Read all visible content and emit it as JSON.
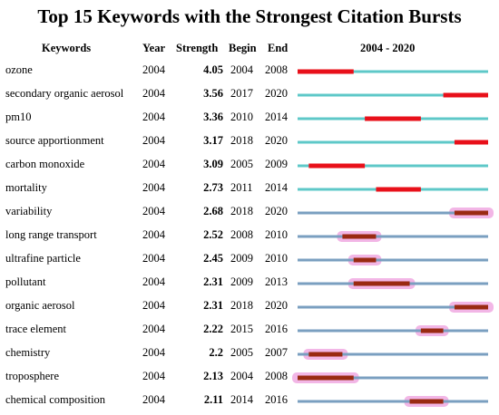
{
  "title": "Top 15 Keywords with the Strongest Citation Bursts",
  "headers": {
    "keywords": "Keywords",
    "year": "Year",
    "strength": "Strength",
    "begin": "Begin",
    "end": "End",
    "timeline": "2004 - 2020"
  },
  "chart_data": {
    "type": "table",
    "timeline_start": 2004,
    "timeline_end": 2020,
    "colors": {
      "baseline_cyan": "#5ec8c8",
      "baseline_blue": "#7a9fc0",
      "burst_red": "#e8101a",
      "burst_dark": "#9a2a12",
      "highlight_pink": "#f2b6e6"
    },
    "rows": [
      {
        "keyword": "ozone",
        "year": "2004",
        "strength": "4.05",
        "begin": "2004",
        "end": "2008",
        "style": "red"
      },
      {
        "keyword": "secondary organic aerosol",
        "year": "2004",
        "strength": "3.56",
        "begin": "2017",
        "end": "2020",
        "style": "red"
      },
      {
        "keyword": "pm10",
        "year": "2004",
        "strength": "3.36",
        "begin": "2010",
        "end": "2014",
        "style": "red"
      },
      {
        "keyword": "source apportionment",
        "year": "2004",
        "strength": "3.17",
        "begin": "2018",
        "end": "2020",
        "style": "red"
      },
      {
        "keyword": "carbon monoxide",
        "year": "2004",
        "strength": "3.09",
        "begin": "2005",
        "end": "2009",
        "style": "red"
      },
      {
        "keyword": "mortality",
        "year": "2004",
        "strength": "2.73",
        "begin": "2011",
        "end": "2014",
        "style": "red"
      },
      {
        "keyword": "variability",
        "year": "2004",
        "strength": "2.68",
        "begin": "2018",
        "end": "2020",
        "style": "dark"
      },
      {
        "keyword": "long range transport",
        "year": "2004",
        "strength": "2.52",
        "begin": "2008",
        "end": "2010",
        "style": "dark"
      },
      {
        "keyword": "ultrafine particle",
        "year": "2004",
        "strength": "2.45",
        "begin": "2009",
        "end": "2010",
        "style": "dark"
      },
      {
        "keyword": "pollutant",
        "year": "2004",
        "strength": "2.31",
        "begin": "2009",
        "end": "2013",
        "style": "dark"
      },
      {
        "keyword": "organic aerosol",
        "year": "2004",
        "strength": "2.31",
        "begin": "2018",
        "end": "2020",
        "style": "dark"
      },
      {
        "keyword": "trace element",
        "year": "2004",
        "strength": "2.22",
        "begin": "2015",
        "end": "2016",
        "style": "dark"
      },
      {
        "keyword": "chemistry",
        "year": "2004",
        "strength": "2.2",
        "begin": "2005",
        "end": "2007",
        "style": "dark"
      },
      {
        "keyword": "troposphere",
        "year": "2004",
        "strength": "2.13",
        "begin": "2004",
        "end": "2008",
        "style": "dark"
      },
      {
        "keyword": "chemical composition",
        "year": "2004",
        "strength": "2.11",
        "begin": "2014",
        "end": "2016",
        "style": "dark"
      }
    ]
  }
}
